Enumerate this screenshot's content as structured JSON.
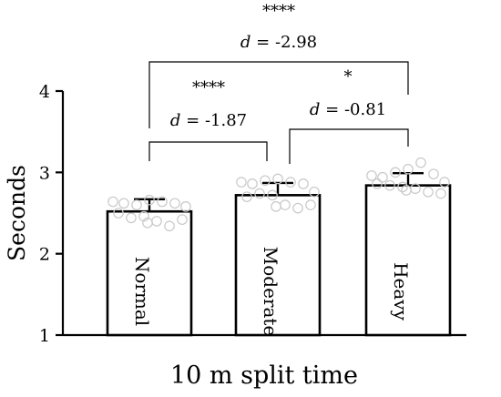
{
  "chart_data": {
    "type": "bar",
    "title": "",
    "xlabel": "10 m split time",
    "ylabel": "Seconds",
    "ylim": [
      1,
      4
    ],
    "yticks": [
      1,
      2,
      3,
      4
    ],
    "grid": false,
    "categories": [
      "Normal",
      "Moderate",
      "Heavy"
    ],
    "values": [
      2.52,
      2.72,
      2.84
    ],
    "errors": [
      0.15,
      0.15,
      0.15
    ],
    "points": [
      [
        2.64,
        2.62,
        2.6,
        2.66,
        2.64,
        2.62,
        2.58,
        2.5,
        2.44,
        2.46,
        2.4,
        2.34,
        2.42,
        2.38
      ],
      [
        2.88,
        2.86,
        2.9,
        2.92,
        2.88,
        2.86,
        2.76,
        2.7,
        2.74,
        2.72,
        2.6,
        2.56,
        2.6,
        2.58
      ],
      [
        2.96,
        2.94,
        3.0,
        3.04,
        3.12,
        2.98,
        2.88,
        2.86,
        2.84,
        2.82,
        2.8,
        2.76,
        2.74,
        2.78
      ]
    ],
    "comparisons": [
      {
        "from": 0,
        "to": 1,
        "stars": "****",
        "effect_label": "d",
        "effect_value": " = -1.87"
      },
      {
        "from": 1,
        "to": 2,
        "stars": "*",
        "effect_label": "d",
        "effect_value": " = -0.81"
      },
      {
        "from": 0,
        "to": 2,
        "stars": "****",
        "effect_label": "d",
        "effect_value": " = -2.98"
      }
    ],
    "colors": {
      "bar_fill": "#ffffff",
      "bar_stroke": "#000000",
      "point_stroke": "#c8c8c8",
      "text": "#000000"
    }
  }
}
